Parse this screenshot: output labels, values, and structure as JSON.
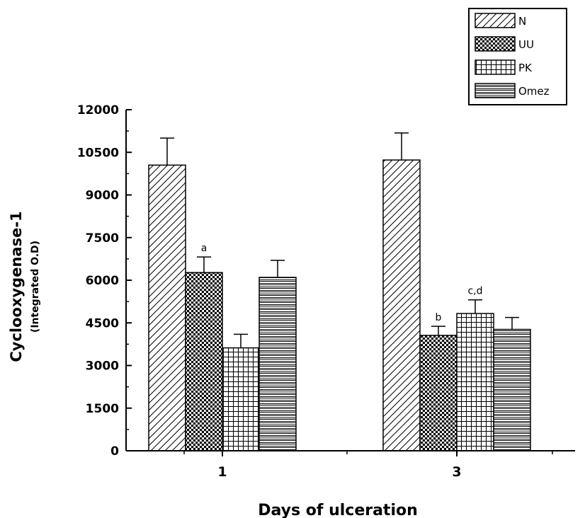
{
  "chart_data": {
    "type": "bar",
    "categories": [
      "1",
      "3"
    ],
    "series": [
      {
        "name": "N",
        "values": [
          10050,
          10230
        ],
        "errors": [
          950,
          950
        ],
        "pattern": "diagonal"
      },
      {
        "name": "UU",
        "values": [
          6270,
          4060
        ],
        "errors": [
          550,
          320
        ],
        "pattern": "dots"
      },
      {
        "name": "PK",
        "values": [
          3620,
          4830
        ],
        "errors": [
          480,
          480
        ],
        "pattern": "grid"
      },
      {
        "name": "Omez",
        "values": [
          6100,
          4270
        ],
        "errors": [
          600,
          420
        ],
        "pattern": "horizontal"
      }
    ],
    "annotations": [
      {
        "text": "a",
        "category": "1",
        "series": "UU"
      },
      {
        "text": "b",
        "category": "3",
        "series": "UU"
      },
      {
        "text": "c,d",
        "category": "3",
        "series": "PK"
      }
    ],
    "xlabel": "Days of ulceration",
    "ylabel": "Cyclooxygenase-1",
    "ylabel_sub": "(Integrated O.D)",
    "ylim": [
      0,
      12000
    ],
    "yticks": [
      0,
      1500,
      3000,
      4500,
      6000,
      7500,
      9000,
      10500,
      12000
    ],
    "legend_position": "top-right",
    "grid": false
  }
}
